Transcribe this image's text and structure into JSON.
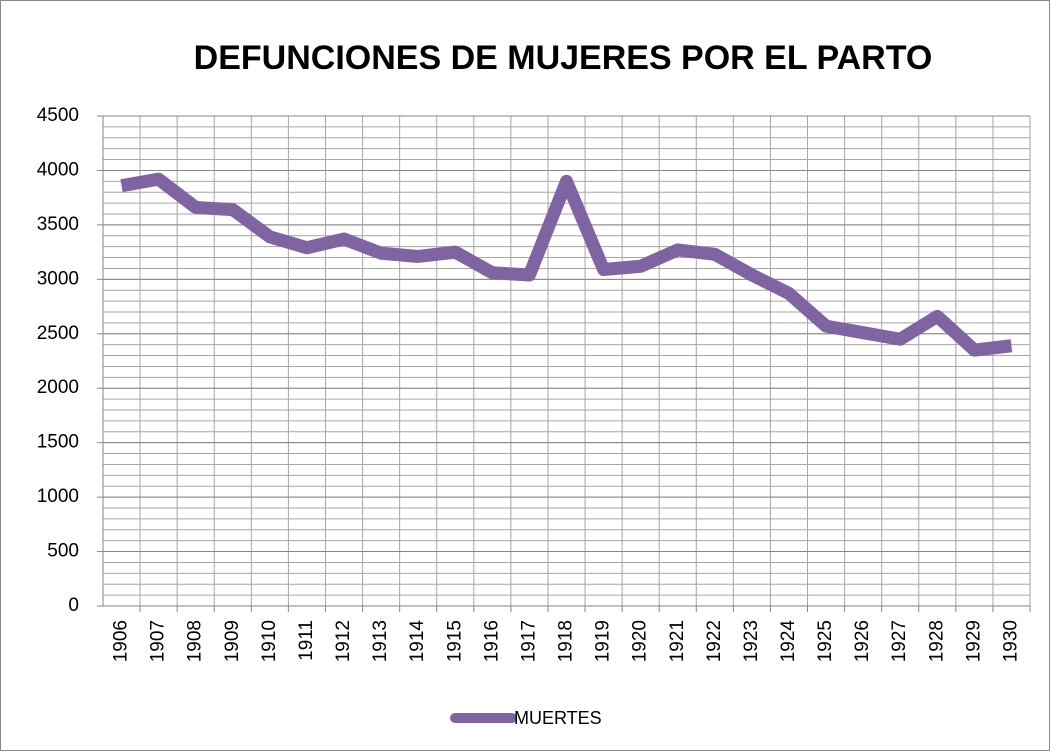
{
  "chart_data": {
    "type": "line",
    "title": "DEFUNCIONES DE MUJERES POR EL PARTO",
    "categories": [
      "1906",
      "1907",
      "1908",
      "1909",
      "1910",
      "1911",
      "1912",
      "1913",
      "1914",
      "1915",
      "1916",
      "1917",
      "1918",
      "1919",
      "1920",
      "1921",
      "1922",
      "1923",
      "1924",
      "1925",
      "1926",
      "1927",
      "1928",
      "1929",
      "1930"
    ],
    "series": [
      {
        "name": "MUERTES",
        "color": "#8064a2",
        "values": [
          3860,
          3920,
          3660,
          3640,
          3390,
          3290,
          3370,
          3240,
          3210,
          3250,
          3060,
          3040,
          3900,
          3090,
          3120,
          3270,
          3230,
          3040,
          2870,
          2570,
          2510,
          2450,
          2660,
          2350,
          2390
        ]
      }
    ],
    "ylim": [
      0,
      4500
    ],
    "yticks": [
      0,
      500,
      1000,
      1500,
      2000,
      2500,
      3000,
      3500,
      4000,
      4500
    ],
    "y_minor_interval": 100,
    "grid": true,
    "legend": "bottom"
  }
}
